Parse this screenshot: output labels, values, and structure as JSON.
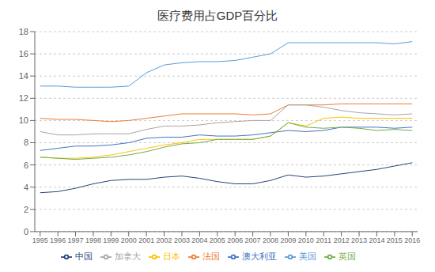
{
  "chart_data": {
    "type": "line",
    "title": "医疗费用占GDP百分比",
    "x": [
      1995,
      1996,
      1997,
      1998,
      1999,
      2000,
      2001,
      2002,
      2003,
      2004,
      2005,
      2006,
      2007,
      2008,
      2009,
      2010,
      2011,
      2012,
      2013,
      2014,
      2015,
      2016
    ],
    "series": [
      {
        "name": "美国",
        "color": "#5B9BD5",
        "values": [
          13.1,
          13.1,
          13.0,
          13.0,
          13.0,
          13.1,
          14.3,
          15.0,
          15.2,
          15.3,
          15.3,
          15.4,
          15.7,
          16.0,
          17.0,
          17.0,
          17.0,
          17.0,
          17.0,
          17.0,
          16.9,
          17.1
        ]
      },
      {
        "name": "法国",
        "color": "#ED7D31",
        "values": [
          10.2,
          10.1,
          10.1,
          10.0,
          9.9,
          10.0,
          10.2,
          10.4,
          10.6,
          10.6,
          10.6,
          10.6,
          10.5,
          10.6,
          11.4,
          11.4,
          11.4,
          11.5,
          11.5,
          11.5,
          11.5,
          11.5
        ]
      },
      {
        "name": "加拿大",
        "color": "#A5A5A5",
        "values": [
          9.0,
          8.7,
          8.7,
          8.8,
          8.8,
          8.8,
          9.2,
          9.5,
          9.5,
          9.6,
          9.8,
          9.9,
          10.0,
          10.0,
          11.4,
          11.4,
          11.2,
          10.9,
          10.7,
          10.6,
          10.5,
          10.6
        ]
      },
      {
        "name": "日本",
        "color": "#FFC000",
        "values": [
          6.7,
          6.6,
          6.6,
          6.7,
          6.9,
          7.2,
          7.5,
          7.8,
          8.0,
          8.3,
          8.3,
          8.3,
          8.3,
          8.6,
          9.8,
          9.5,
          10.2,
          10.3,
          10.2,
          10.2,
          10.2,
          10.2
        ]
      },
      {
        "name": "澳大利亚",
        "color": "#4472C4",
        "values": [
          7.3,
          7.5,
          7.7,
          7.7,
          7.8,
          8.0,
          8.4,
          8.5,
          8.5,
          8.7,
          8.6,
          8.6,
          8.7,
          8.9,
          9.1,
          9.0,
          9.1,
          9.4,
          9.4,
          9.4,
          9.3,
          9.4
        ]
      },
      {
        "name": "英国",
        "color": "#70AD47",
        "values": [
          6.7,
          6.6,
          6.5,
          6.6,
          6.7,
          6.9,
          7.2,
          7.6,
          7.9,
          8.0,
          8.3,
          8.3,
          8.3,
          8.6,
          9.8,
          9.4,
          9.3,
          9.4,
          9.3,
          9.1,
          9.2,
          9.1
        ]
      },
      {
        "name": "中国",
        "color": "#264478",
        "values": [
          3.5,
          3.6,
          3.9,
          4.3,
          4.6,
          4.7,
          4.7,
          4.9,
          5.0,
          4.8,
          4.5,
          4.3,
          4.3,
          4.6,
          5.1,
          4.9,
          5.0,
          5.2,
          5.4,
          5.6,
          5.9,
          6.2
        ]
      }
    ],
    "xlim": [
      1994.7,
      2016.3
    ],
    "xticks": [
      1995,
      1996,
      1997,
      1998,
      1999,
      2000,
      2001,
      2002,
      2003,
      2004,
      2005,
      2006,
      2007,
      2008,
      2009,
      2010,
      2011,
      2012,
      2013,
      2014,
      2015,
      2016
    ],
    "ylim": [
      0,
      18
    ],
    "yticks": [
      0,
      2,
      4,
      6,
      8,
      10,
      12,
      14,
      16,
      18
    ],
    "grid": true,
    "legend": "bottom"
  }
}
